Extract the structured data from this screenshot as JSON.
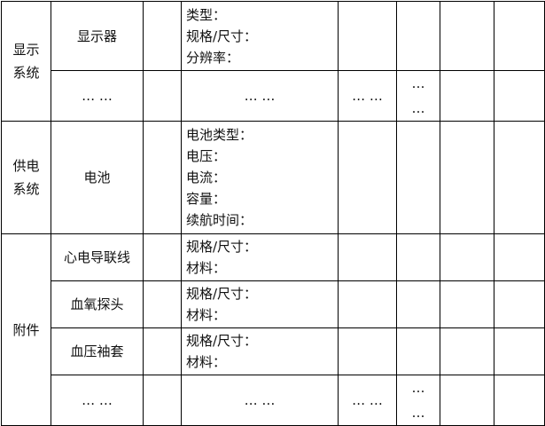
{
  "display": {
    "category": "显示系统",
    "component": "显示器",
    "specs": [
      "类型：",
      "规格/尺寸：",
      "分辨率："
    ]
  },
  "display_more": {
    "c2": "… …",
    "c4": "… …",
    "c5": "… …",
    "c6a": "…",
    "c6b": "…"
  },
  "power": {
    "category": "供电系统",
    "component": "电池",
    "specs": [
      "电池类型：",
      "电压：",
      "电流：",
      "容量：",
      "续航时间："
    ]
  },
  "accessories": {
    "category": "附件",
    "items": [
      {
        "component": "心电导联线",
        "specs": [
          "规格/尺寸：",
          "材料："
        ]
      },
      {
        "component": "血氧探头",
        "specs": [
          "规格/尺寸：",
          "材料："
        ]
      },
      {
        "component": "血压袖套",
        "specs": [
          "规格/尺寸：",
          "材料："
        ]
      }
    ]
  },
  "acc_more": {
    "c2": "… …",
    "c4": "… …",
    "c5": "… …",
    "c6a": "…",
    "c6b": "…"
  }
}
